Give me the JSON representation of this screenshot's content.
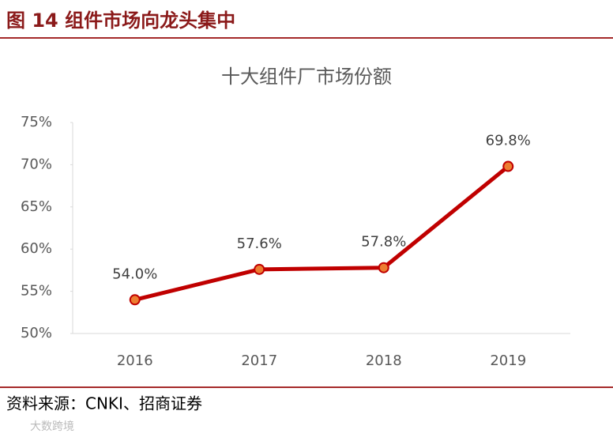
{
  "figure": {
    "caption": "图 14  组件市场向龙头集中",
    "source": "资料来源：CNKI、招商证券",
    "watermark": "大数跨境"
  },
  "chart_data": {
    "type": "line",
    "title": "十大组件厂市场份额",
    "categories": [
      "2016",
      "2017",
      "2018",
      "2019"
    ],
    "values": [
      54.0,
      57.6,
      57.8,
      69.8
    ],
    "value_labels": [
      "54.0%",
      "57.6%",
      "57.8%",
      "69.8%"
    ],
    "color": "#c00000",
    "marker_color": "#ed7d31",
    "ylim": [
      50,
      75
    ],
    "yticks": [
      {
        "value": 50,
        "label": "50%"
      },
      {
        "value": 55,
        "label": "55%"
      },
      {
        "value": 60,
        "label": "60%"
      },
      {
        "value": 65,
        "label": "65%"
      },
      {
        "value": 70,
        "label": "70%"
      },
      {
        "value": 75,
        "label": "75%"
      }
    ],
    "grid": false
  }
}
